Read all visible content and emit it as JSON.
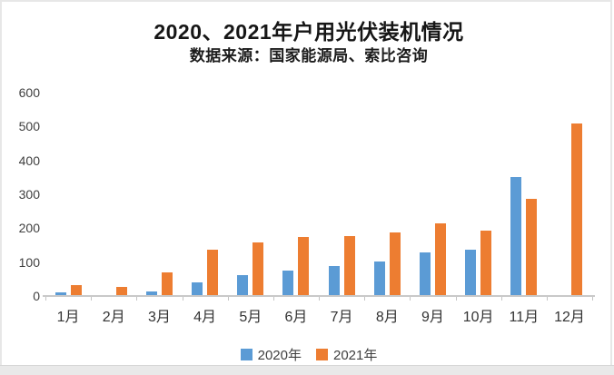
{
  "page": {
    "bg": "#ffffff",
    "card_border_color": "#e7e7e7",
    "bottom_strip_color": "#e9e9e9"
  },
  "header": {
    "title": "2020、2021年户用光伏装机情况",
    "subtitle": "数据来源：国家能源局、索比咨询"
  },
  "chart_data": {
    "type": "bar",
    "title": "2020、2021年户用光伏装机情况",
    "subtitle": "数据来源：国家能源局、索比咨询",
    "categories": [
      "1月",
      "2月",
      "3月",
      "4月",
      "5月",
      "6月",
      "7月",
      "8月",
      "9月",
      "10月",
      "11月",
      "12月"
    ],
    "series": [
      {
        "name": "2020年",
        "color": "#5B9BD5",
        "values": [
          12,
          4,
          13,
          41,
          62,
          76,
          89,
          103,
          130,
          137,
          350,
          0
        ]
      },
      {
        "name": "2021年",
        "color": "#ED7D31",
        "values": [
          33,
          28,
          70,
          136,
          157,
          174,
          178,
          187,
          215,
          192,
          287,
          510
        ]
      }
    ],
    "xlabel": "",
    "ylabel": "",
    "ylim": [
      0,
      600
    ],
    "yticks": [
      0,
      100,
      200,
      300,
      400,
      500,
      600
    ],
    "grid": false,
    "legend_position": "bottom",
    "axis_color": "#c9c9c9",
    "tick_text_color": "#404040"
  }
}
